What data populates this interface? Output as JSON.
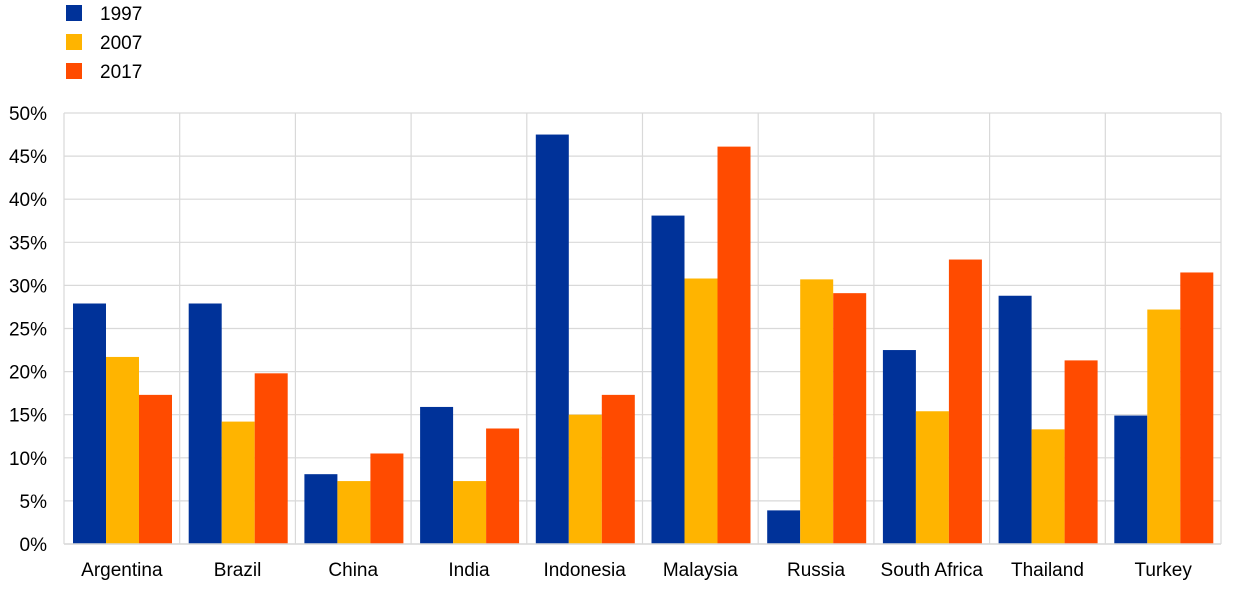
{
  "chart_data": {
    "type": "bar",
    "title": "",
    "xlabel": "",
    "ylabel": "",
    "ylim": [
      0,
      0.5
    ],
    "y_ticks": [
      "0%",
      "5%",
      "10%",
      "15%",
      "20%",
      "25%",
      "30%",
      "35%",
      "40%",
      "45%",
      "50%"
    ],
    "grid": true,
    "legend_position": "top-left",
    "categories": [
      "Argentina",
      "Brazil",
      "China",
      "India",
      "Indonesia",
      "Malaysia",
      "Russia",
      "South Africa",
      "Thailand",
      "Turkey"
    ],
    "series": [
      {
        "name": "1997",
        "color": "#003299",
        "values": [
          0.279,
          0.279,
          0.081,
          0.159,
          0.475,
          0.381,
          0.039,
          0.225,
          0.288,
          0.149
        ]
      },
      {
        "name": "2007",
        "color": "#FFB400",
        "values": [
          0.217,
          0.142,
          0.073,
          0.073,
          0.15,
          0.308,
          0.307,
          0.154,
          0.133,
          0.272
        ]
      },
      {
        "name": "2017",
        "color": "#FF4B00",
        "values": [
          0.173,
          0.198,
          0.105,
          0.134,
          0.173,
          0.461,
          0.291,
          0.33,
          0.213,
          0.315
        ]
      }
    ]
  }
}
